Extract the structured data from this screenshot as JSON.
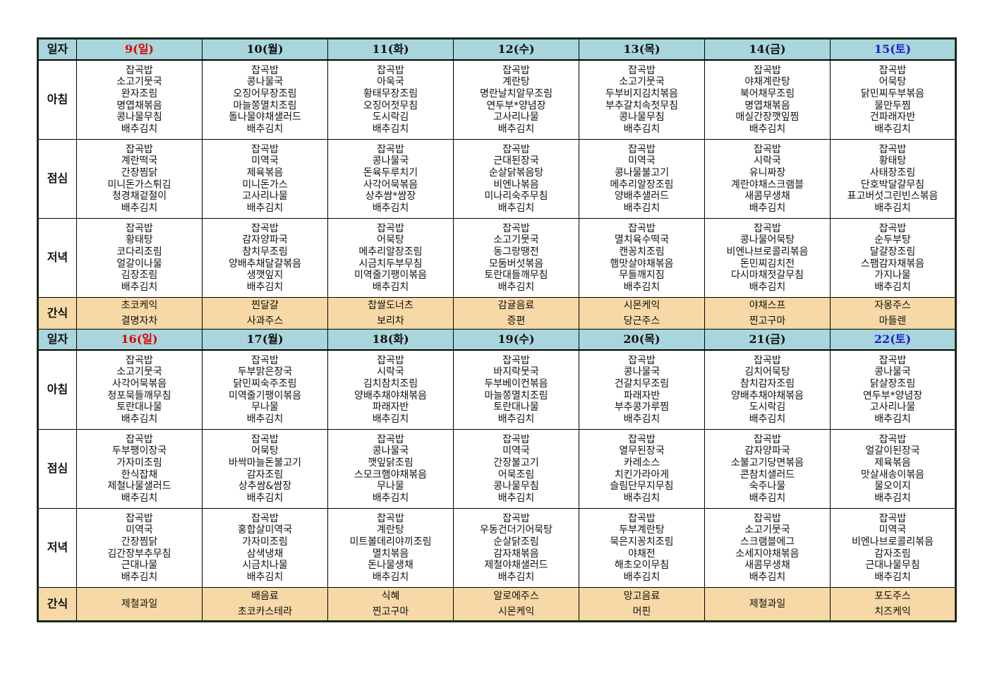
{
  "row_labels": {
    "date": "일자",
    "breakfast": "아침",
    "lunch": "점심",
    "dinner": "저녁",
    "snack": "간식"
  },
  "colors": {
    "header_bg": "#a9d6dc",
    "snack_bg": "#f6d9a7",
    "sunday": "#e00000",
    "saturday": "#1a1ad0",
    "weekday": "#111111"
  },
  "weeks": [
    {
      "days": [
        {
          "label": "9(일)",
          "type": "sunday"
        },
        {
          "label": "10(월)",
          "type": "weekday"
        },
        {
          "label": "11(화)",
          "type": "weekday"
        },
        {
          "label": "12(수)",
          "type": "weekday"
        },
        {
          "label": "13(목)",
          "type": "weekday"
        },
        {
          "label": "14(금)",
          "type": "weekday"
        },
        {
          "label": "15(토)",
          "type": "saturday"
        }
      ],
      "breakfast": [
        [
          "잡곡밥",
          "소고기뭇국",
          "완자조림",
          "명엽채볶음",
          "콩나물무침",
          "배추김치"
        ],
        [
          "잡곡밥",
          "콩나물국",
          "오징어무장조림",
          "마늘쫑멸치조림",
          "돌나물야채샐러드",
          "배추김치"
        ],
        [
          "잡곡밥",
          "아욱국",
          "황태무장조림",
          "오징어젓무침",
          "도시락김",
          "배추김치"
        ],
        [
          "잡곡밥",
          "계란탕",
          "명란날치알무조림",
          "연두부*양념장",
          "고사리나물",
          "배추김치"
        ],
        [
          "잡곡밥",
          "소고기뭇국",
          "두부비지김치볶음",
          "부추갈치속젓무침",
          "콩나물무침",
          "배추김치"
        ],
        [
          "잡곡밥",
          "야채계란탕",
          "북어채무조림",
          "명엽채볶음",
          "매실간장깻잎찜",
          "배추김치"
        ],
        [
          "잡곡밥",
          "어묵탕",
          "닭민찌두부볶음",
          "물만두찜",
          "건파래자반",
          "배추김치"
        ]
      ],
      "lunch": [
        [
          "잡곡밥",
          "계란떡국",
          "간장찜닭",
          "미니돈가스튀김",
          "청경채겉절이",
          "배추김치"
        ],
        [
          "잡곡밥",
          "미역국",
          "제육볶음",
          "미니돈가스",
          "고사리나물",
          "배추김치"
        ],
        [
          "잡곡밥",
          "콩나물국",
          "돈육두루치기",
          "사각어묵볶음",
          "상추쌈*쌈장",
          "배추김치"
        ],
        [
          "잡곡밥",
          "근대된장국",
          "순살닭볶음탕",
          "비엔나볶음",
          "미나리숙주무침",
          "배추김치"
        ],
        [
          "잡곡밥",
          "미역국",
          "콩나물불고기",
          "메추리알장조림",
          "양배추샐러드",
          "배추김치"
        ],
        [
          "잡곡밥",
          "시락국",
          "유니짜장",
          "계란야채스크램블",
          "새콤무생채",
          "배추김치"
        ],
        [
          "잡곡밥",
          "황태탕",
          "사태장조림",
          "단호박달걀무침",
          "표고버섯그린빈스볶음",
          "배추김치"
        ]
      ],
      "dinner": [
        [
          "잡곡밥",
          "황태탕",
          "코다리조림",
          "얼갈이나물",
          "김장조림",
          "배추김치"
        ],
        [
          "잡곡밥",
          "감자양파국",
          "참치무조림",
          "양배추채달걀볶음",
          "생깻잎지",
          "배추김치"
        ],
        [
          "잡곡밥",
          "어묵탕",
          "메추리알장조림",
          "시금치두부무침",
          "미역줄기팽이볶음",
          "배추김치"
        ],
        [
          "잡곡밥",
          "소고기뭇국",
          "동그랑땡전",
          "모둠버섯볶음",
          "토란대들깨무침",
          "배추김치"
        ],
        [
          "잡곡밥",
          "멸치육수떡국",
          "캔꽁치조림",
          "햄맛살야채볶음",
          "무들깨지짐",
          "배추김치"
        ],
        [
          "잡곡밥",
          "콩나물어묵탕",
          "비엔나브로콜리볶음",
          "돈민찌김치전",
          "다시마채젓갈무침",
          "배추김치"
        ],
        [
          "잡곡밥",
          "순두부탕",
          "달걀장조림",
          "스팸감자채볶음",
          "가지나물",
          "배추김치"
        ]
      ],
      "snack": [
        [
          "초코케익",
          "결명자차"
        ],
        [
          "찐달걀",
          "사과주스"
        ],
        [
          "찹쌀도너츠",
          "보리차"
        ],
        [
          "감귤음료",
          "증편"
        ],
        [
          "시몬케익",
          "당근주스"
        ],
        [
          "야채스프",
          "찐고구마"
        ],
        [
          "자몽주스",
          "마들렌"
        ]
      ]
    },
    {
      "days": [
        {
          "label": "16(일)",
          "type": "sunday"
        },
        {
          "label": "17(월)",
          "type": "weekday"
        },
        {
          "label": "18(화)",
          "type": "weekday"
        },
        {
          "label": "19(수)",
          "type": "weekday"
        },
        {
          "label": "20(목)",
          "type": "weekday"
        },
        {
          "label": "21(금)",
          "type": "weekday"
        },
        {
          "label": "22(토)",
          "type": "saturday"
        }
      ],
      "breakfast": [
        [
          "잡곡밥",
          "소고기뭇국",
          "사각어묵볶음",
          "청포묵들깨무침",
          "토란대나물",
          "배추김치"
        ],
        [
          "잡곡밥",
          "두부맑은장국",
          "닭민찌숙주조림",
          "미역줄기팽이볶음",
          "무나물",
          "배추김치"
        ],
        [
          "잡곡밥",
          "시락국",
          "김치참치조림",
          "양배추채야채볶음",
          "파래자반",
          "배추김치"
        ],
        [
          "잡곡밥",
          "바지락뭇국",
          "두부베이컨볶음",
          "마늘쫑멸치조림",
          "토란대나물",
          "배추김치"
        ],
        [
          "잡곡밥",
          "콩나물국",
          "건갈치무조림",
          "파래자반",
          "부추콩가루찜",
          "배추김치"
        ],
        [
          "잡곡밥",
          "김치어묵탕",
          "참치감자조림",
          "양배추채야채볶음",
          "도시락김",
          "배추김치"
        ],
        [
          "잡곡밥",
          "콩나물국",
          "닭살장조림",
          "연두부*양념장",
          "고사리나물",
          "배추김치"
        ]
      ],
      "lunch": [
        [
          "잡곡밥",
          "두부팽이장국",
          "가자미조림",
          "한식잡채",
          "제철나물샐러드",
          "배추김치"
        ],
        [
          "잡곡밥",
          "어묵탕",
          "바싹마늘돈불고기",
          "감자조림",
          "상추쌈&쌈장",
          "배추김치"
        ],
        [
          "잡곡밥",
          "콩나물국",
          "깻잎닭조림",
          "스모크햄야채볶음",
          "무나물",
          "배추김치"
        ],
        [
          "잡곡밥",
          "미역국",
          "간장불고기",
          "어묵조림",
          "콩나물무침",
          "배추김치"
        ],
        [
          "잡곡밥",
          "열무된장국",
          "카레소스",
          "치킨가라아게",
          "슬림단무지무침",
          "배추김치"
        ],
        [
          "잡곡밥",
          "감자양파국",
          "소불고기당면볶음",
          "콘참치샐러드",
          "숙주나물",
          "배추김치"
        ],
        [
          "잡곡밥",
          "얼갈이된장국",
          "제육볶음",
          "맛살새송이볶음",
          "물오이지",
          "배추김치"
        ]
      ],
      "dinner": [
        [
          "잡곡밥",
          "미역국",
          "간장찜닭",
          "김간장부추무침",
          "근대나물",
          "배추김치"
        ],
        [
          "잡곡밥",
          "홍합살미역국",
          "가자미조림",
          "삼색냉채",
          "시금치나물",
          "배추김치"
        ],
        [
          "잡곡밥",
          "계란탕",
          "미트볼데리야끼조림",
          "멸치볶음",
          "돈나물생채",
          "배추김치"
        ],
        [
          "잡곡밥",
          "우동건더기어묵탕",
          "순살닭조림",
          "감자채볶음",
          "제철야채샐러드",
          "배추김치"
        ],
        [
          "잡곡밥",
          "두부계란탕",
          "묵은지꽁치조림",
          "야채전",
          "해초오이무침",
          "배추김치"
        ],
        [
          "잡곡밥",
          "소고기뭇국",
          "스크램블에그",
          "소세지야채볶음",
          "새콤무생채",
          "배추김치"
        ],
        [
          "잡곡밥",
          "미역국",
          "비엔나브로콜리볶음",
          "감자조림",
          "근대나물무침",
          "배추김치"
        ]
      ],
      "snack": [
        [
          "제철과일"
        ],
        [
          "배음료",
          "초코카스테라"
        ],
        [
          "식혜",
          "찐고구마"
        ],
        [
          "알로에주스",
          "시몬케익"
        ],
        [
          "망고음료",
          "머핀"
        ],
        [
          "제철과일"
        ],
        [
          "포도주스",
          "치즈케익"
        ]
      ]
    }
  ]
}
